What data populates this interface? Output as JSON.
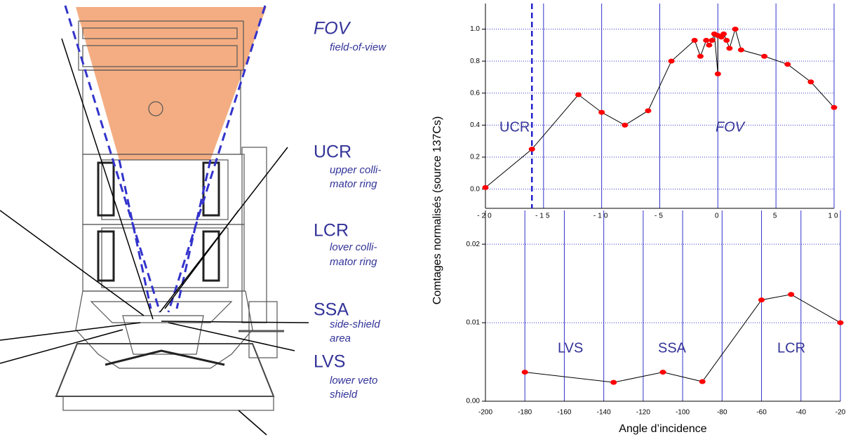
{
  "diagram": {
    "labels": [
      {
        "title": "FOV",
        "lines": [
          "field-of-view"
        ]
      },
      {
        "title": "UCR",
        "lines": [
          "upper colli-",
          "mator ring"
        ]
      },
      {
        "title": "LCR",
        "lines": [
          "lover colli-",
          "mator ring"
        ]
      },
      {
        "title": "SSA",
        "lines": [
          "side-shield",
          "area"
        ]
      },
      {
        "title": "LVS",
        "lines": [
          "lower veto",
          "shield"
        ]
      }
    ]
  },
  "chart_data": [
    {
      "type": "line",
      "y_label": "Comtages normalisés (source 137Cs)",
      "x": [
        -20,
        -16,
        -12,
        -10,
        -8,
        -6,
        -4,
        -2,
        -1.5,
        -1,
        -0.75,
        -0.5,
        -0.3,
        0,
        0,
        0.3,
        0.5,
        0.75,
        1,
        1.5,
        2,
        4,
        6,
        8,
        10
      ],
      "series": [
        {
          "color": "#000000",
          "marker_color": "#ff0000",
          "values": [
            0.01,
            0.25,
            0.59,
            0.48,
            0.4,
            0.49,
            0.8,
            0.93,
            0.83,
            0.93,
            0.9,
            0.93,
            0.97,
            0.72,
            0.96,
            0.95,
            0.97,
            0.93,
            0.88,
            1.0,
            0.87,
            0.83,
            0.78,
            0.67,
            0.51
          ]
        }
      ],
      "xlim": [
        -20,
        10
      ],
      "ylim": [
        -0.12,
        1.16
      ],
      "xticks": [
        -20,
        -15,
        -10,
        -5,
        0,
        5,
        10
      ],
      "yticks": [
        {
          "value": 0,
          "label": "0.0"
        },
        0.2,
        0.4,
        0.6,
        0.8,
        {
          "value": 1,
          "label": "1.0"
        }
      ],
      "reference_x": -16,
      "grid": true,
      "grid_color": "#3333cc",
      "annotations": [
        "UCR",
        "FOV"
      ]
    },
    {
      "type": "line",
      "x_label": "Angle d’incidence",
      "x": [
        -180,
        -135,
        -110,
        -90,
        -60,
        -45,
        -20
      ],
      "series": [
        {
          "color": "#000000",
          "marker_color": "#ff0000",
          "values": [
            0.0037,
            0.0024,
            0.0037,
            0.0025,
            0.0129,
            0.0136,
            0.01
          ]
        }
      ],
      "xlim": [
        -200,
        -20
      ],
      "ylim": [
        0,
        0.0243
      ],
      "xticks": [
        -200,
        -180,
        -160,
        -140,
        -120,
        -100,
        -80,
        -60,
        -40,
        -20
      ],
      "yticks": [
        {
          "value": 0,
          "label": "0.00"
        },
        0.01,
        0.02
      ],
      "grid": true,
      "grid_color": "#3333cc",
      "annotations": [
        "LVS",
        "SSA",
        "LCR"
      ]
    }
  ]
}
